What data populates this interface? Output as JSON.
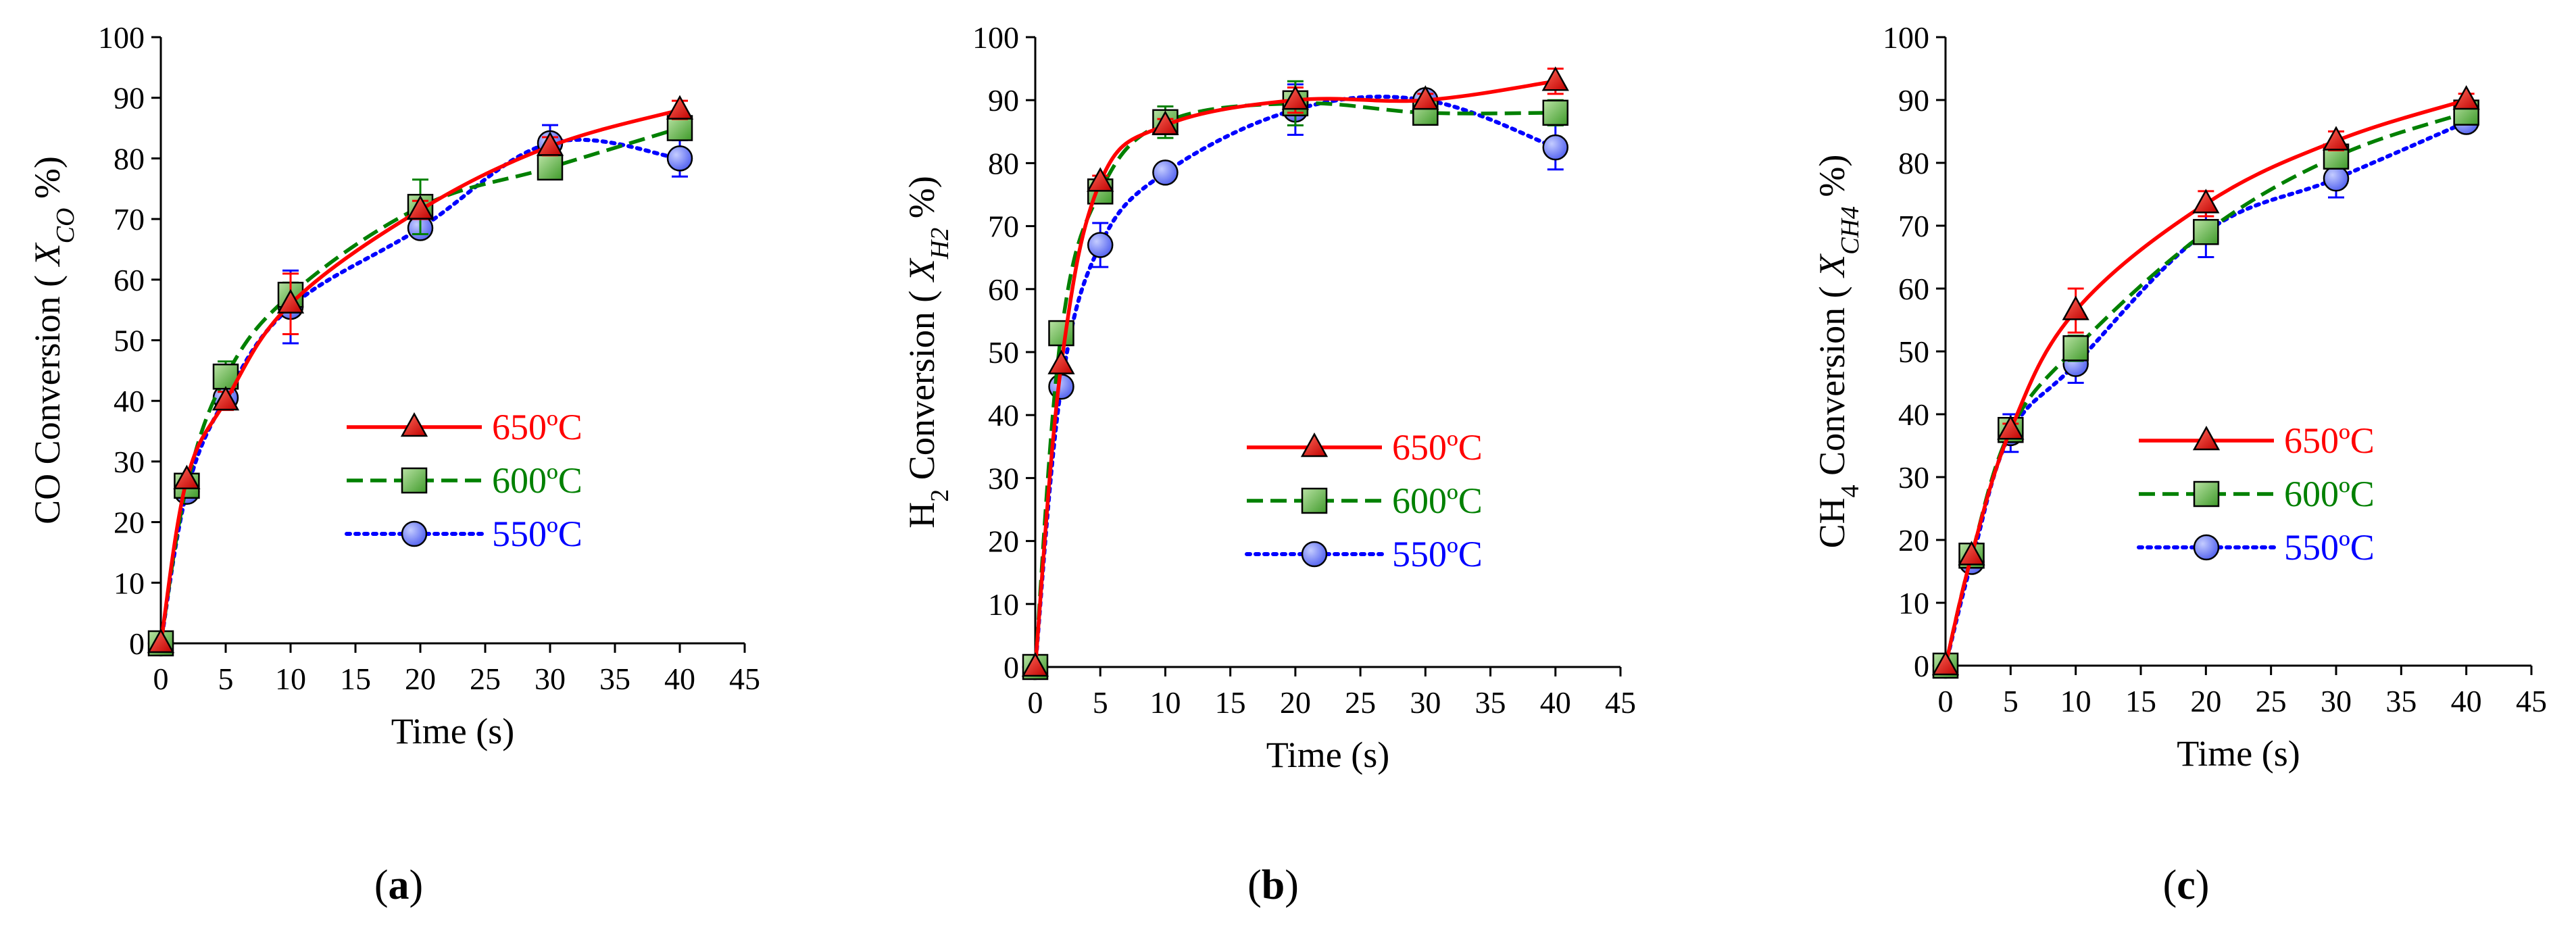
{
  "chart_data": [
    {
      "type": "line",
      "panel_label": {
        "open": "(",
        "letter": "a",
        "close": ")"
      },
      "xlabel": "Time (s)",
      "ylabel": {
        "main": "CO Conversion ( ",
        "var": "X",
        "sub": "CO",
        "tail": " %)"
      },
      "xlim": [
        0,
        45
      ],
      "ylim": [
        0,
        100
      ],
      "xticks": [
        "0",
        "5",
        "10",
        "15",
        "20",
        "25",
        "30",
        "35",
        "40",
        "45"
      ],
      "yticks": [
        "0",
        "10",
        "20",
        "30",
        "40",
        "50",
        "60",
        "70",
        "80",
        "90",
        "100"
      ],
      "x": [
        0,
        2,
        5,
        10,
        20,
        30,
        40
      ],
      "legend_position": "right-middle",
      "series": [
        {
          "name": "650ºC",
          "color": "#ff0000",
          "line": "solid",
          "marker": "triangle",
          "values": [
            0,
            27,
            40,
            56,
            71.5,
            82,
            88
          ],
          "errors": [
            0,
            0,
            1.5,
            5,
            1.5,
            1.5,
            1.5
          ]
        },
        {
          "name": "600ºC",
          "color": "#008000",
          "line": "dashed",
          "marker": "square",
          "values": [
            0,
            26,
            44,
            57.5,
            72,
            78.5,
            85
          ],
          "errors": [
            0,
            1,
            2.5,
            2,
            4.5,
            1,
            1.5
          ]
        },
        {
          "name": "550ºC",
          "color": "#0000ff",
          "line": "dotted",
          "marker": "circle",
          "values": [
            0,
            25,
            40.5,
            55.5,
            68.5,
            82.5,
            80
          ],
          "errors": [
            0,
            0,
            1,
            6,
            1,
            3,
            3
          ]
        }
      ]
    },
    {
      "type": "line",
      "panel_label": {
        "open": "(",
        "letter": "b",
        "close": ")"
      },
      "xlabel": "Time (s)",
      "ylabel": {
        "main": "H",
        "sub0": "2",
        "main2": " Conversion ( ",
        "var": "X",
        "sub": "H2",
        "tail": " %)"
      },
      "xlim": [
        0,
        45
      ],
      "ylim": [
        0,
        100
      ],
      "xticks": [
        "0",
        "5",
        "10",
        "15",
        "20",
        "25",
        "30",
        "35",
        "40",
        "45"
      ],
      "yticks": [
        "0",
        "10",
        "20",
        "30",
        "40",
        "50",
        "60",
        "70",
        "80",
        "90",
        "100"
      ],
      "x": [
        0,
        2,
        5,
        10,
        20,
        30,
        40
      ],
      "legend_position": "right-middle",
      "series": [
        {
          "name": "650ºC",
          "color": "#ff0000",
          "line": "solid",
          "marker": "triangle",
          "values": [
            0,
            48,
            77,
            86,
            90,
            90,
            93
          ],
          "errors": [
            0,
            0,
            1,
            1,
            2,
            1,
            2
          ]
        },
        {
          "name": "600ºC",
          "color": "#008000",
          "line": "dashed",
          "marker": "square",
          "values": [
            0,
            53,
            75.5,
            86.5,
            89.5,
            88,
            88
          ],
          "errors": [
            0,
            1,
            1,
            2.5,
            3.5,
            1,
            2
          ]
        },
        {
          "name": "550ºC",
          "color": "#0000ff",
          "line": "dotted",
          "marker": "circle",
          "values": [
            0,
            44.5,
            67,
            78.5,
            88.5,
            90,
            82.5
          ],
          "errors": [
            0,
            0,
            3.5,
            1,
            4,
            1,
            3.5
          ]
        }
      ]
    },
    {
      "type": "line",
      "panel_label": {
        "open": "(",
        "letter": "c",
        "close": ")"
      },
      "xlabel": "Time (s)",
      "ylabel": {
        "main": "CH",
        "sub0": "4",
        "main2": " Conversion ( ",
        "var": "X",
        "sub": "CH4",
        "tail": " %)"
      },
      "xlim": [
        0,
        45
      ],
      "ylim": [
        0,
        100
      ],
      "xticks": [
        "0",
        "5",
        "10",
        "15",
        "20",
        "25",
        "30",
        "35",
        "40",
        "45"
      ],
      "yticks": [
        "0",
        "10",
        "20",
        "30",
        "40",
        "50",
        "60",
        "70",
        "80",
        "90",
        "100"
      ],
      "x": [
        0,
        2,
        5,
        10,
        20,
        30,
        40
      ],
      "legend_position": "right-middle",
      "series": [
        {
          "name": "650ºC",
          "color": "#ff0000",
          "line": "solid",
          "marker": "triangle",
          "values": [
            0,
            17.5,
            37.5,
            56.5,
            73.5,
            83.5,
            90
          ],
          "errors": [
            0,
            0,
            1,
            3.5,
            2,
            1.5,
            1
          ]
        },
        {
          "name": "600ºC",
          "color": "#008000",
          "line": "dashed",
          "marker": "square",
          "values": [
            0,
            17.5,
            37.5,
            50.5,
            69,
            81,
            88
          ],
          "errors": [
            0,
            0,
            1,
            2,
            1,
            1.5,
            1
          ]
        },
        {
          "name": "550ºC",
          "color": "#0000ff",
          "line": "dotted",
          "marker": "circle",
          "values": [
            0,
            16.5,
            37,
            48,
            69,
            77.5,
            86.5
          ],
          "errors": [
            0,
            0,
            3,
            3,
            4,
            3,
            1
          ]
        }
      ]
    }
  ]
}
